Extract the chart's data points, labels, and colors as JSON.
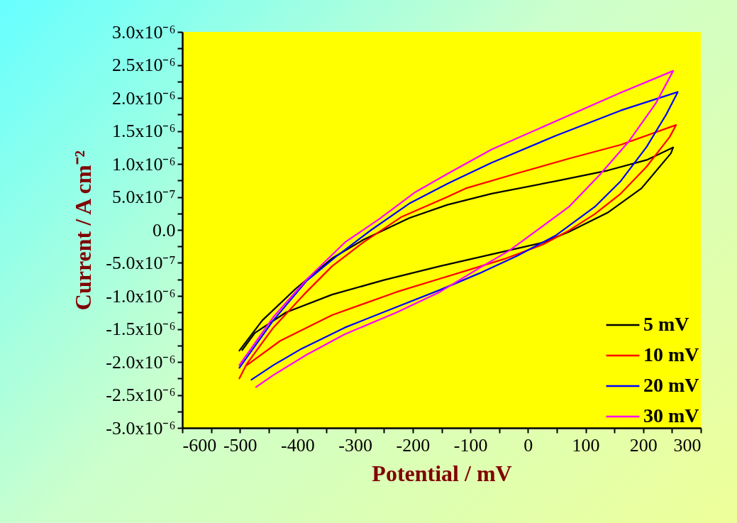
{
  "chart_data": {
    "type": "line",
    "xlabel": "Potential / mV",
    "ylabel": "Current / A cm⁻²",
    "xlim": [
      -600,
      300
    ],
    "xticks": [
      -600,
      {
        "value": -550,
        "label": null
      },
      -500,
      {
        "value": -450,
        "label": null
      },
      -400,
      {
        "value": -350,
        "label": null
      },
      -300,
      {
        "value": -250,
        "label": null
      },
      -200,
      {
        "value": -150,
        "label": null
      },
      -100,
      {
        "value": -50,
        "label": null
      },
      0,
      {
        "value": 50,
        "label": null
      },
      100,
      {
        "value": 150,
        "label": null
      },
      200,
      {
        "value": 250,
        "label": null
      },
      300
    ],
    "ylim": [
      -3e-06,
      3e-06
    ],
    "yticks": [
      {
        "value": -3e-06,
        "label": "-3.0x10⁻⁶"
      },
      {
        "value": -2.75e-06,
        "label": null
      },
      {
        "value": -2.5e-06,
        "label": "-2.5x10⁻⁶"
      },
      {
        "value": -2.25e-06,
        "label": null
      },
      {
        "value": -2e-06,
        "label": "-2.0x10⁻⁶"
      },
      {
        "value": -1.75e-06,
        "label": null
      },
      {
        "value": -1.5e-06,
        "label": "-1.5x10⁻⁶"
      },
      {
        "value": -1.25e-06,
        "label": null
      },
      {
        "value": -1e-06,
        "label": "-1.0x10⁻⁶"
      },
      {
        "value": -7.5e-07,
        "label": null
      },
      {
        "value": -5e-07,
        "label": "-5.0x10⁻⁷"
      },
      {
        "value": -2.5e-07,
        "label": null
      },
      {
        "value": 0,
        "label": "0.0"
      },
      {
        "value": 2.5e-07,
        "label": null
      },
      {
        "value": 5e-07,
        "label": "5.0x10⁻⁷"
      },
      {
        "value": 7.5e-07,
        "label": null
      },
      {
        "value": 1e-06,
        "label": "1.0x10⁻⁶"
      },
      {
        "value": 1.25e-06,
        "label": null
      },
      {
        "value": 1.5e-06,
        "label": "1.5x10⁻⁶"
      },
      {
        "value": 1.75e-06,
        "label": null
      },
      {
        "value": 2e-06,
        "label": "2.0x10⁻⁶"
      },
      {
        "value": 2.25e-06,
        "label": null
      },
      {
        "value": 2.5e-06,
        "label": "2.5x10⁻⁶"
      },
      {
        "value": 2.75e-06,
        "label": null
      },
      {
        "value": 3e-06,
        "label": "3.0x10⁻⁶"
      }
    ],
    "grid": false,
    "legend": "bottom right",
    "line_style": "solid",
    "marker": "none",
    "series": [
      {
        "name": "5 mV",
        "color": "#000000",
        "x": [
          -501,
          -461,
          -403,
          -340,
          -286,
          -206,
          -140,
          -63,
          49,
          138,
          206,
          252,
          248,
          197,
          138,
          71,
          26,
          -63,
          -153,
          -250,
          -340,
          -420,
          -474,
          -496
        ],
        "values": [
          -1.83e-06,
          -1.37e-06,
          -8.9e-07,
          -4.3e-07,
          -1.5e-07,
          1.8e-07,
          3.8e-07,
          5.5e-07,
          7.4e-07,
          9e-07,
          1.06e-06,
          1.25e-06,
          1.16e-06,
          6.3e-07,
          2.6e-07,
          -3e-08,
          -1.9e-07,
          -3.7e-07,
          -5.5e-07,
          -7.6e-07,
          -9.8e-07,
          -1.25e-06,
          -1.56e-06,
          -1.82e-06
        ]
      },
      {
        "name": "10 mV",
        "color": "#ff0000",
        "x": [
          -501,
          -488,
          -442,
          -389,
          -340,
          -286,
          -219,
          -140,
          -108,
          -18,
          71,
          161,
          257,
          246,
          206,
          161,
          116,
          71,
          26,
          -41,
          -108,
          -153,
          -228,
          -340,
          -430,
          -488
        ],
        "values": [
          -2.25e-06,
          -2.03e-06,
          -1.48e-06,
          -9.8e-07,
          -5.5e-07,
          -1.9e-07,
          2e-07,
          5e-07,
          6.3e-07,
          8.6e-07,
          1.08e-06,
          1.29e-06,
          1.59e-06,
          1.41e-06,
          9.6e-07,
          5.5e-07,
          2.4e-07,
          -1e-08,
          -2.2e-07,
          -4.4e-07,
          -6.2e-07,
          -7.4e-07,
          -9.4e-07,
          -1.29e-06,
          -1.68e-06,
          -2.05e-06
        ]
      },
      {
        "name": "20 mV",
        "color": "#0000ff",
        "x": [
          -501,
          -442,
          -384,
          -331,
          -272,
          -206,
          -140,
          -63,
          49,
          161,
          260,
          240,
          206,
          161,
          116,
          49,
          -18,
          -85,
          -153,
          -223,
          -318,
          -393,
          -442,
          -480
        ],
        "values": [
          -2.09e-06,
          -1.37e-06,
          -7.7e-07,
          -3.9e-07,
          0,
          4e-07,
          7e-07,
          1.02e-06,
          1.43e-06,
          1.81e-06,
          2.09e-06,
          1.75e-06,
          1.26e-06,
          7.4e-07,
          3.5e-07,
          -8e-08,
          -3.9e-07,
          -6.6e-07,
          -9.1e-07,
          -1.15e-06,
          -1.48e-06,
          -1.8e-06,
          -2.05e-06,
          -2.27e-06
        ]
      },
      {
        "name": "30 mV",
        "color": "#ff00ff",
        "x": [
          -501,
          -442,
          -384,
          -318,
          -259,
          -196,
          -140,
          -63,
          49,
          161,
          252,
          222,
          174,
          124,
          71,
          26,
          -32,
          -85,
          -153,
          -228,
          -318,
          -384,
          -442,
          -472
        ],
        "values": [
          -2.05e-06,
          -1.32e-06,
          -7.5e-07,
          -1.9e-07,
          1.6e-07,
          5.7e-07,
          8.5e-07,
          1.22e-06,
          1.65e-06,
          2.08e-06,
          2.41e-06,
          1.92e-06,
          1.33e-06,
          8.3e-07,
          3.5e-07,
          6e-08,
          -3.1e-07,
          -5.8e-07,
          -9.4e-07,
          -1.25e-06,
          -1.58e-06,
          -1.89e-06,
          -2.2e-06,
          -2.38e-06
        ]
      }
    ]
  }
}
